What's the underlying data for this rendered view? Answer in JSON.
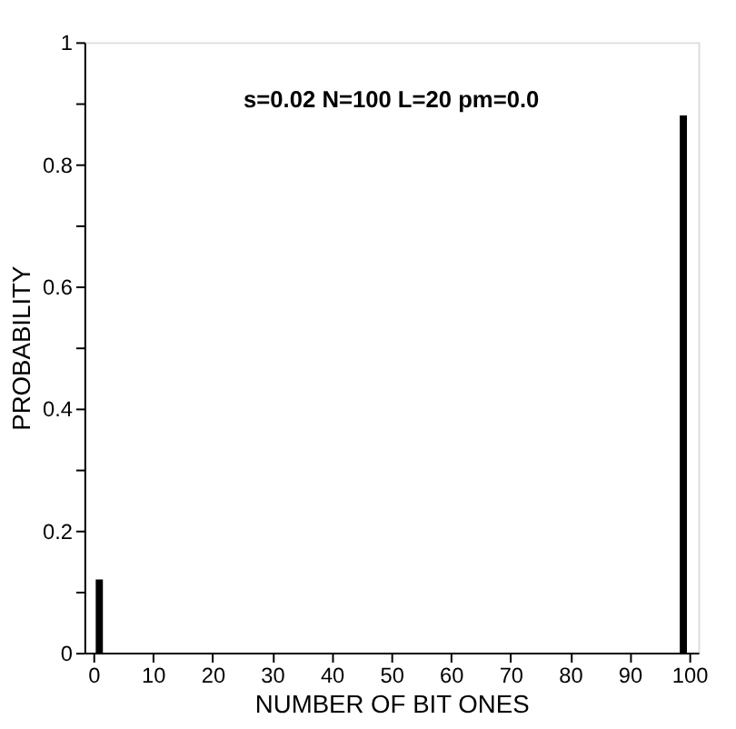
{
  "chart_data": {
    "type": "bar",
    "x": [
      1,
      99
    ],
    "values": [
      0.12,
      0.88
    ],
    "color": "#000000",
    "xlabel": "NUMBER OF BIT ONES",
    "ylabel": "PROBABILITY",
    "annotations": [
      "s=0.02  N=100  L=20  pm=0.0"
    ],
    "xlim": [
      0,
      100
    ],
    "xticks": [
      0,
      10,
      20,
      30,
      40,
      50,
      60,
      70,
      80,
      90,
      100
    ],
    "ylim": [
      0,
      1
    ],
    "yticks": [
      0,
      {
        "value": 0.1,
        "label": null
      },
      0.2,
      {
        "value": 0.3,
        "label": null
      },
      0.4,
      {
        "value": 0.5,
        "label": null
      },
      0.6,
      {
        "value": 0.7,
        "label": null
      },
      0.8,
      {
        "value": 0.9,
        "label": null
      },
      1
    ],
    "grid": false
  }
}
